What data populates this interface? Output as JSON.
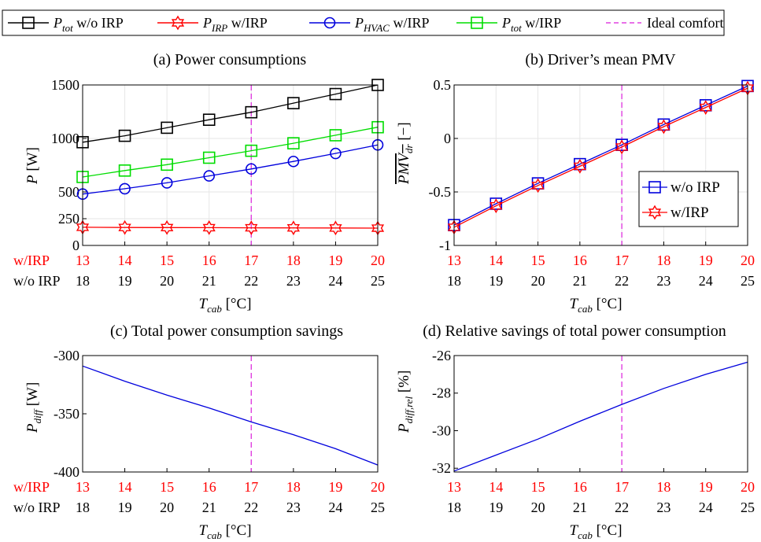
{
  "legend": {
    "items": [
      {
        "key": "p_tot_wo",
        "sym": "P",
        "sub": "tot",
        "suffix": " w/o IRP",
        "color": "#000000",
        "marker": "square"
      },
      {
        "key": "p_irp_w",
        "sym": "P",
        "sub": "IRP",
        "suffix": " w/IRP",
        "color": "#ff0000",
        "marker": "hexagram"
      },
      {
        "key": "p_hvac_w",
        "sym": "P",
        "sub": "HVAC",
        "suffix": " w/IRP",
        "color": "#0000dd",
        "marker": "circle"
      },
      {
        "key": "p_tot_w",
        "sym": "P",
        "sub": "tot",
        "suffix": " w/IRP",
        "color": "#00dd00",
        "marker": "square"
      },
      {
        "key": "ideal",
        "label": "Ideal comfort",
        "color": "#e040e0",
        "marker": "dash"
      }
    ]
  },
  "chart_data": [
    {
      "type": "line",
      "title": "(a) Power consumptions",
      "ylabel": {
        "sym": "P",
        "unit": "[W]"
      },
      "xlabel": {
        "sym": "T",
        "sub": "cab",
        "unit": "[°C]"
      },
      "x_row1": {
        "label": "w/IRP",
        "ticks": [
          "13",
          "14",
          "15",
          "16",
          "17",
          "18",
          "19",
          "20"
        ],
        "color": "#ff0000"
      },
      "x_row2": {
        "label": "w/o IRP",
        "ticks": [
          "18",
          "19",
          "20",
          "21",
          "22",
          "23",
          "24",
          "25"
        ]
      },
      "yticks": [
        "0",
        "250",
        "500",
        "1000",
        "1500"
      ],
      "ylim": [
        0,
        1500
      ],
      "ideal_x_index": 4,
      "grid": true,
      "series": [
        {
          "key": "p_tot_wo",
          "values": [
            965,
            1025,
            1100,
            1175,
            1245,
            1330,
            1415,
            1500
          ],
          "color": "#000000",
          "marker": "square"
        },
        {
          "key": "p_tot_w",
          "values": [
            640,
            700,
            755,
            820,
            885,
            955,
            1030,
            1105
          ],
          "color": "#00dd00",
          "marker": "square"
        },
        {
          "key": "p_hvac_w",
          "values": [
            480,
            530,
            585,
            650,
            715,
            785,
            860,
            940
          ],
          "color": "#0000dd",
          "marker": "circle"
        },
        {
          "key": "p_irp_w",
          "values": [
            170,
            168,
            167,
            166,
            165,
            164,
            163,
            162
          ],
          "color": "#ff0000",
          "marker": "hexagram"
        }
      ]
    },
    {
      "type": "line",
      "title": "(b) Driver’s mean PMV",
      "ylabel": {
        "sym": "PMV",
        "sub": "dr",
        "unit": "[−]"
      },
      "xlabel": {
        "sym": "T",
        "sub": "cab",
        "unit": "[°C]"
      },
      "x_row1": {
        "label": "",
        "ticks": [
          "13",
          "14",
          "15",
          "16",
          "17",
          "18",
          "19",
          "20"
        ],
        "color": "#ff0000"
      },
      "x_row2": {
        "label": "",
        "ticks": [
          "18",
          "19",
          "20",
          "21",
          "22",
          "23",
          "24",
          "25"
        ]
      },
      "yticks": [
        "-1",
        "-0.5",
        "0",
        "0.5"
      ],
      "ylim": [
        -1,
        0.5
      ],
      "ideal_x_index": 4,
      "grid": true,
      "legend": [
        {
          "label": "w/o IRP",
          "color": "#0000dd",
          "marker": "square"
        },
        {
          "label": "w/IRP",
          "color": "#ff0000",
          "marker": "hexagram"
        }
      ],
      "series": [
        {
          "name": "w/o IRP",
          "values": [
            -0.81,
            -0.61,
            -0.42,
            -0.24,
            -0.06,
            0.13,
            0.31,
            0.49
          ],
          "color": "#0000dd",
          "marker": "square"
        },
        {
          "name": "w/IRP",
          "values": [
            -0.83,
            -0.63,
            -0.44,
            -0.26,
            -0.08,
            0.11,
            0.29,
            0.47
          ],
          "color": "#ff0000",
          "marker": "hexagram"
        }
      ]
    },
    {
      "type": "line",
      "title": "(c) Total power consumption savings",
      "ylabel": {
        "sym": "P",
        "sub": "diff",
        "unit": "[W]"
      },
      "xlabel": {
        "sym": "T",
        "sub": "cab",
        "unit": "[°C]"
      },
      "x_row1": {
        "label": "w/IRP",
        "ticks": [
          "13",
          "14",
          "15",
          "16",
          "17",
          "18",
          "19",
          "20"
        ],
        "color": "#ff0000"
      },
      "x_row2": {
        "label": "w/o IRP",
        "ticks": [
          "18",
          "19",
          "20",
          "21",
          "22",
          "23",
          "24",
          "25"
        ]
      },
      "yticks": [
        "-400",
        "-350",
        "-300"
      ],
      "ylim": [
        -400,
        -300
      ],
      "ideal_x_index": 4,
      "grid": false,
      "series": [
        {
          "values": [
            -309,
            -322,
            -334,
            -345,
            -357,
            -368,
            -380,
            -394
          ],
          "color": "#0000dd",
          "marker": "none"
        }
      ]
    },
    {
      "type": "line",
      "title": "(d) Relative savings of total power consumption",
      "ylabel": {
        "sym": "P",
        "sub": "diff,rel",
        "unit": "[%]"
      },
      "xlabel": {
        "sym": "T",
        "sub": "cab",
        "unit": "[°C]"
      },
      "x_row1": {
        "label": "",
        "ticks": [
          "13",
          "14",
          "15",
          "16",
          "17",
          "18",
          "19",
          "20"
        ],
        "color": "#ff0000"
      },
      "x_row2": {
        "label": "",
        "ticks": [
          "18",
          "19",
          "20",
          "21",
          "22",
          "23",
          "24",
          "25"
        ]
      },
      "yticks": [
        "-32",
        "-30",
        "-28",
        "-26"
      ],
      "ylim": [
        -32.2,
        -26
      ],
      "ideal_x_index": 4,
      "grid": false,
      "series": [
        {
          "values": [
            -32.15,
            -31.3,
            -30.45,
            -29.5,
            -28.6,
            -27.75,
            -27.0,
            -26.35
          ],
          "color": "#0000dd",
          "marker": "none"
        }
      ]
    }
  ]
}
